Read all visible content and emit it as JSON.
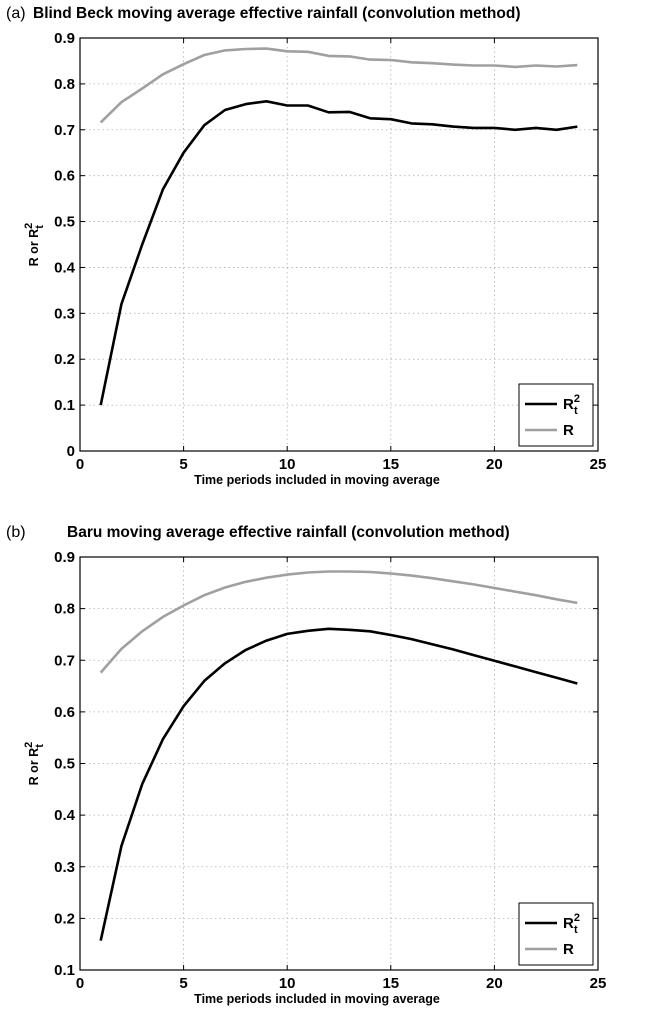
{
  "chart_data": [
    {
      "type": "line",
      "panel_label": "(a)",
      "title": "Blind Beck moving average effective rainfall (convolution method)",
      "xlabel": "Time periods included in moving average",
      "ylabel": {
        "base": "R or R",
        "sup": "2",
        "sub": "t"
      },
      "xlim": [
        0,
        25
      ],
      "ylim": [
        0,
        0.9
      ],
      "xticks": [
        "0",
        "5",
        "10",
        "15",
        "20",
        "25"
      ],
      "yticks": [
        "0",
        "0.1",
        "0.2",
        "0.3",
        "0.4",
        "0.5",
        "0.6",
        "0.7",
        "0.8",
        "0.9"
      ],
      "grid": true,
      "legend": "bottom-right",
      "x": [
        1,
        2,
        3,
        4,
        5,
        6,
        7,
        8,
        9,
        10,
        11,
        12,
        13,
        14,
        15,
        16,
        17,
        18,
        19,
        20,
        21,
        22,
        23,
        24
      ],
      "series": [
        {
          "name": {
            "base": "R",
            "sup": "2",
            "sub": "t"
          },
          "color": "#000000",
          "values": [
            0.1,
            0.32,
            0.45,
            0.57,
            0.65,
            0.71,
            0.743,
            0.756,
            0.762,
            0.753,
            0.753,
            0.738,
            0.739,
            0.725,
            0.723,
            0.714,
            0.712,
            0.707,
            0.704,
            0.704,
            0.7,
            0.704,
            0.7,
            0.707
          ]
        },
        {
          "name": {
            "base": "R",
            "sup": "",
            "sub": ""
          },
          "color": "#a0a0a0",
          "values": [
            0.716,
            0.76,
            0.79,
            0.821,
            0.843,
            0.863,
            0.873,
            0.876,
            0.877,
            0.871,
            0.87,
            0.861,
            0.86,
            0.853,
            0.852,
            0.847,
            0.845,
            0.842,
            0.84,
            0.84,
            0.837,
            0.84,
            0.838,
            0.841
          ]
        }
      ]
    },
    {
      "type": "line",
      "panel_label": "(b)",
      "title": "Baru moving average effective rainfall (convolution method)",
      "xlabel": "Time periods included in moving average",
      "ylabel": {
        "base": "R or R",
        "sup": "2",
        "sub": "t"
      },
      "xlim": [
        0,
        25
      ],
      "ylim": [
        0.1,
        0.9
      ],
      "xticks": [
        "0",
        "5",
        "10",
        "15",
        "20",
        "25"
      ],
      "yticks": [
        "0.1",
        "0.2",
        "0.3",
        "0.4",
        "0.5",
        "0.6",
        "0.7",
        "0.8",
        "0.9"
      ],
      "grid": true,
      "legend": "bottom-right",
      "x": [
        1,
        2,
        3,
        4,
        5,
        6,
        7,
        8,
        9,
        10,
        11,
        12,
        13,
        14,
        15,
        16,
        17,
        18,
        19,
        20,
        21,
        22,
        23,
        24
      ],
      "series": [
        {
          "name": {
            "base": "R",
            "sup": "2",
            "sub": "t"
          },
          "color": "#000000",
          "values": [
            0.157,
            0.34,
            0.46,
            0.547,
            0.611,
            0.66,
            0.694,
            0.72,
            0.738,
            0.751,
            0.757,
            0.761,
            0.759,
            0.756,
            0.749,
            0.741,
            0.731,
            0.721,
            0.71,
            0.699,
            0.688,
            0.677,
            0.666,
            0.655
          ]
        },
        {
          "name": {
            "base": "R",
            "sup": "",
            "sub": ""
          },
          "color": "#a0a0a0",
          "values": [
            0.676,
            0.722,
            0.756,
            0.784,
            0.806,
            0.826,
            0.841,
            0.852,
            0.86,
            0.866,
            0.87,
            0.872,
            0.872,
            0.871,
            0.868,
            0.864,
            0.859,
            0.853,
            0.847,
            0.84,
            0.833,
            0.826,
            0.818,
            0.811
          ]
        }
      ]
    }
  ]
}
